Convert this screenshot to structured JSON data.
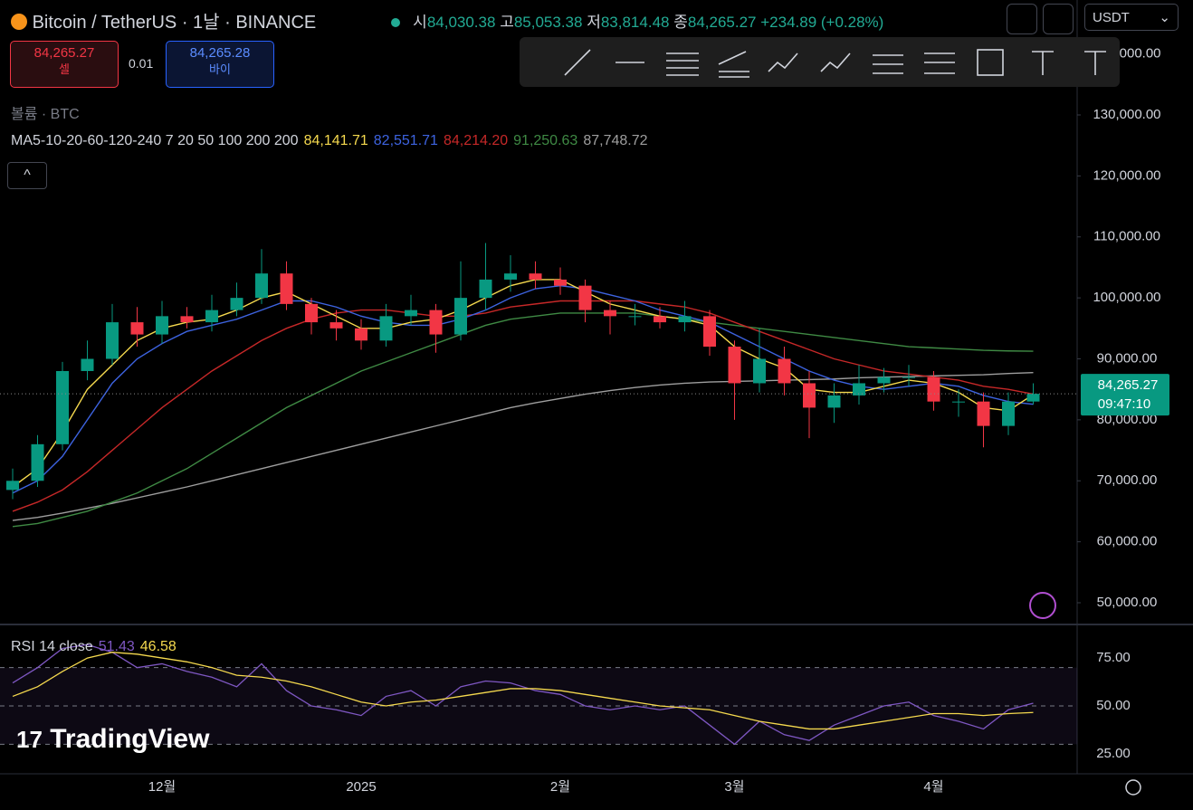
{
  "header": {
    "title": "Bitcoin / TetherUS · 1날 · BINANCE",
    "open_label": "시",
    "open": "84,030.38",
    "high_label": "고",
    "high": "85,053.38",
    "low_label": "저",
    "low": "83,814.48",
    "close_label": "종",
    "close": "84,265.27",
    "change": "+234.89 (+0.28%)",
    "sell_price": "84,265.27",
    "sell_label": "셀",
    "spread": "0.01",
    "buy_price": "84,265.28",
    "buy_label": "바이",
    "volume": "볼륨 · BTC",
    "currency": "USDT",
    "brand": "TradingView"
  },
  "chart_data": [
    {
      "type": "candlestick",
      "indicator": "MA5-10-20-60-120-240 7 20 50 100 200 200",
      "categories": [
        null,
        null,
        null,
        null,
        null,
        null,
        "12월",
        null,
        null,
        null,
        null,
        null,
        null,
        null,
        "2025",
        null,
        null,
        null,
        null,
        null,
        null,
        null,
        "2월",
        null,
        null,
        null,
        null,
        null,
        null,
        "3월",
        null,
        null,
        null,
        null,
        null,
        null,
        null,
        "4월",
        null,
        null,
        null,
        null
      ],
      "open": [
        68500,
        70000,
        76000,
        88000,
        90000,
        96000,
        94000,
        97000,
        96000,
        98000,
        100000,
        104000,
        99000,
        96000,
        95000,
        93000,
        97000,
        98000,
        94000,
        100000,
        103000,
        104000,
        103000,
        102000,
        98000,
        97000,
        97000,
        96000,
        97000,
        92000,
        86000,
        90000,
        86000,
        82000,
        84000,
        86000,
        87000,
        87000,
        83000,
        83000,
        79000,
        83000
      ],
      "high": [
        72000,
        77500,
        89500,
        93000,
        99000,
        98500,
        99500,
        98500,
        100500,
        102500,
        108000,
        106000,
        100000,
        98000,
        96500,
        99000,
        100500,
        99000,
        106000,
        109000,
        107000,
        106000,
        105000,
        103000,
        99500,
        99000,
        98500,
        99500,
        98000,
        93000,
        95000,
        92000,
        88000,
        86000,
        89000,
        88500,
        89000,
        88000,
        85000,
        84500,
        84500,
        86000
      ],
      "low": [
        67000,
        69000,
        75000,
        86500,
        89000,
        92000,
        92500,
        95000,
        94500,
        97000,
        99000,
        98000,
        94000,
        93000,
        91500,
        92000,
        95500,
        91000,
        93000,
        98000,
        101000,
        101500,
        100500,
        96000,
        94000,
        95500,
        95000,
        94500,
        90500,
        80000,
        84500,
        84000,
        77000,
        79500,
        82500,
        84500,
        85500,
        81500,
        80500,
        75500,
        77500,
        82500
      ],
      "close": [
        70000,
        76000,
        88000,
        90000,
        96000,
        94000,
        97000,
        96000,
        98000,
        100000,
        104000,
        99000,
        96000,
        95000,
        93000,
        97000,
        98000,
        94000,
        100000,
        103000,
        104000,
        103000,
        102000,
        98000,
        97000,
        97000,
        96000,
        97000,
        92000,
        86000,
        90000,
        86000,
        82000,
        84000,
        86000,
        87000,
        87000,
        83000,
        83000,
        79000,
        83000,
        84265.27
      ],
      "up_color": "#089981",
      "down_color": "#f23645",
      "series": [
        {
          "legend_value": "84,141.71",
          "color": "#f5d94e",
          "values": [
            69000,
            72000,
            78000,
            85000,
            89000,
            93000,
            95000,
            96000,
            96500,
            98000,
            100000,
            101000,
            99000,
            97000,
            95000,
            95000,
            96000,
            96500,
            98000,
            100000,
            102000,
            103000,
            103000,
            101000,
            99000,
            98000,
            97000,
            96500,
            95500,
            92000,
            90000,
            88500,
            85000,
            84500,
            84500,
            85500,
            86500,
            86000,
            84500,
            82000,
            81500,
            84141.71
          ]
        },
        {
          "legend_value": "82,551.71",
          "color": "#3d63e0",
          "values": [
            68000,
            70000,
            74000,
            80000,
            86000,
            90000,
            92500,
            94500,
            95500,
            96500,
            98000,
            99500,
            99500,
            98500,
            97000,
            96000,
            95500,
            95500,
            96500,
            98000,
            100000,
            101500,
            102000,
            101500,
            100500,
            99500,
            98000,
            97000,
            96000,
            94000,
            92000,
            90000,
            88000,
            86500,
            85500,
            85000,
            85500,
            86000,
            85500,
            84000,
            83000,
            82551.71
          ]
        },
        {
          "legend_value": "84,214.20",
          "color": "#c62828",
          "values": [
            65000,
            66500,
            68500,
            71500,
            75000,
            78500,
            82000,
            85000,
            88000,
            90500,
            93000,
            95000,
            96500,
            97500,
            98000,
            98000,
            97500,
            97000,
            97000,
            97500,
            98500,
            99000,
            99500,
            99500,
            99500,
            99500,
            99000,
            98500,
            97500,
            96000,
            94500,
            93000,
            91500,
            90000,
            89000,
            88000,
            87500,
            87000,
            86500,
            85500,
            85000,
            84214.2
          ]
        },
        {
          "legend_value": "91,250.63",
          "color": "#3f8a44",
          "values": [
            62500,
            63000,
            64000,
            65000,
            66500,
            68000,
            70000,
            72000,
            74500,
            77000,
            79500,
            82000,
            84000,
            86000,
            88000,
            89500,
            91000,
            92500,
            94000,
            95500,
            96500,
            97000,
            97500,
            97500,
            97500,
            97500,
            97000,
            96500,
            96000,
            95500,
            95000,
            94500,
            94000,
            93500,
            93000,
            92500,
            92000,
            91800,
            91600,
            91400,
            91300,
            91250.63
          ]
        },
        {
          "legend_value": "87,748.72",
          "color": "#9e9e9e",
          "values": [
            63500,
            64000,
            64700,
            65500,
            66300,
            67200,
            68100,
            69000,
            70000,
            71000,
            72000,
            73000,
            74000,
            75000,
            76000,
            77000,
            78000,
            79000,
            80000,
            81000,
            82000,
            82800,
            83500,
            84200,
            84800,
            85300,
            85700,
            86000,
            86200,
            86300,
            86400,
            86500,
            86600,
            86700,
            86900,
            87000,
            87100,
            87200,
            87300,
            87400,
            87600,
            87748.72
          ]
        }
      ],
      "ylim": [
        46440,
        148850
      ],
      "yticks": [
        {
          "value": 50000,
          "label": "50,000.00"
        },
        {
          "value": 60000,
          "label": "60,000.00"
        },
        {
          "value": 70000,
          "label": "70,000.00"
        },
        {
          "value": 80000,
          "label": "80,000.00"
        },
        {
          "value": 90000,
          "label": "90,000.00"
        },
        {
          "value": 100000,
          "label": "100,000.00"
        },
        {
          "value": 110000,
          "label": "110,000.00"
        },
        {
          "value": 120000,
          "label": "120,000.00"
        },
        {
          "value": 130000,
          "label": "130,000.00"
        },
        {
          "value": 140000,
          "label": "140,000.00"
        }
      ],
      "last_price": {
        "value": 84265.27,
        "label": "84,265.27"
      },
      "countdown": "09:47:10"
    },
    {
      "type": "line",
      "label": "RSI 14 close",
      "band": [
        30,
        70
      ],
      "levels": [
        70,
        50,
        30
      ],
      "series": [
        {
          "legend_value": "51.43",
          "color": "#7e57c2",
          "values": [
            62,
            70,
            80,
            82,
            78,
            70,
            72,
            68,
            65,
            60,
            72,
            58,
            50,
            48,
            45,
            55,
            58,
            50,
            60,
            63,
            62,
            58,
            56,
            50,
            48,
            50,
            48,
            50,
            40,
            30,
            42,
            35,
            32,
            40,
            45,
            50,
            52,
            45,
            42,
            38,
            48,
            51.43
          ]
        },
        {
          "legend_value": "46.58",
          "color": "#f5d94e",
          "values": [
            55,
            60,
            68,
            75,
            78,
            77,
            75,
            73,
            70,
            66,
            65,
            63,
            60,
            56,
            52,
            50,
            52,
            53,
            55,
            57,
            59,
            59,
            58,
            56,
            54,
            52,
            50,
            49,
            48,
            45,
            42,
            40,
            38,
            38,
            40,
            42,
            44,
            46,
            46,
            45,
            46,
            46.58
          ]
        }
      ],
      "ylim": [
        14.6,
        92.5
      ],
      "yticks": [
        {
          "value": 25,
          "label": "25.00"
        },
        {
          "value": 50,
          "label": "50.00"
        },
        {
          "value": 75,
          "label": "75.00"
        }
      ]
    }
  ]
}
